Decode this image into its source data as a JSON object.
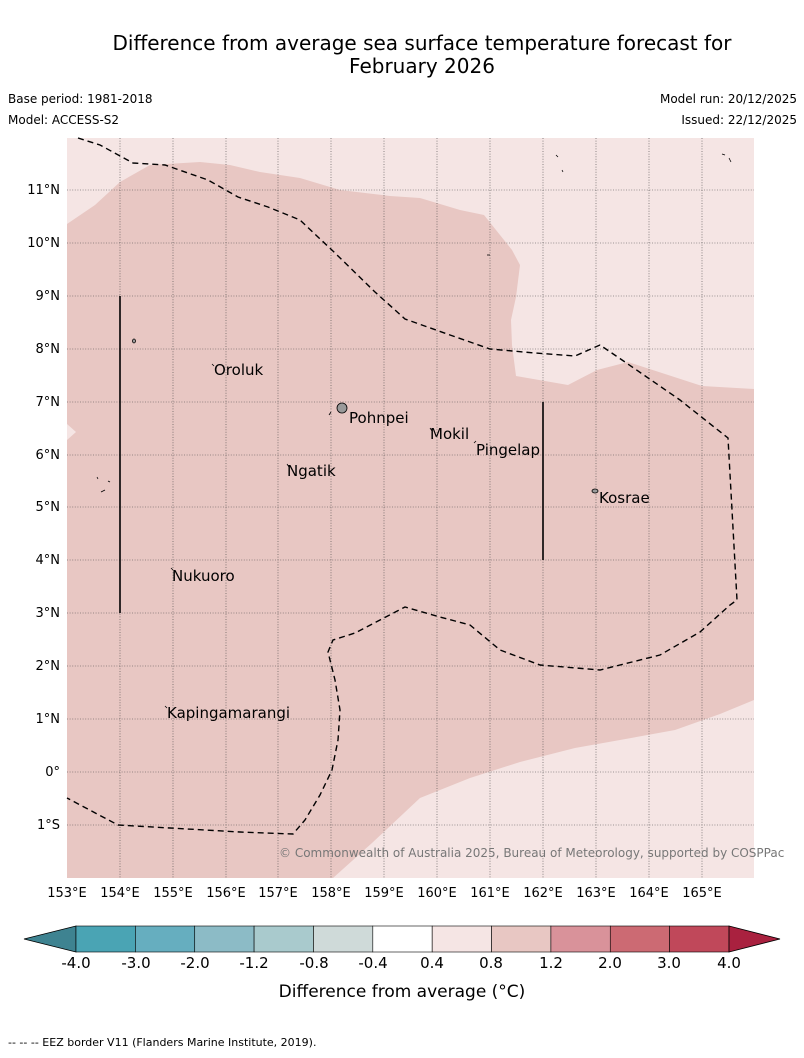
{
  "title_line1": "Difference from average sea surface temperature forecast for",
  "title_line2": "February 2026",
  "header": {
    "base_period": "Base period: 1981-2018",
    "model": "Model: ACCESS-S2",
    "model_run": "Model run: 20/12/2025",
    "issued": "Issued: 22/12/2025"
  },
  "map": {
    "lat_labels": [
      "11°N",
      "10°N",
      "9°N",
      "8°N",
      "7°N",
      "6°N",
      "5°N",
      "4°N",
      "3°N",
      "2°N",
      "1°N",
      "0°",
      "1°S"
    ],
    "lon_labels": [
      "153°E",
      "154°E",
      "155°E",
      "156°E",
      "157°E",
      "158°E",
      "159°E",
      "160°E",
      "161°E",
      "162°E",
      "163°E",
      "164°E",
      "165°E"
    ],
    "places": [
      {
        "name": "Oroluk"
      },
      {
        "name": "Pohnpei"
      },
      {
        "name": "Mokil"
      },
      {
        "name": "Pingelap"
      },
      {
        "name": "Ngatik"
      },
      {
        "name": "Kosrae"
      },
      {
        "name": "Nukuoro"
      },
      {
        "name": "Kapingamarangi"
      }
    ],
    "copyright": "© Commonwealth of Australia 2025, Bureau of Meteorology, supported by COSPPac",
    "colors": {
      "band_0p4_0p8": "#f5e5e4",
      "band_0p8_1p2": "#e8c7c3",
      "land": "#9a9a9a"
    }
  },
  "colorbar": {
    "ticks": [
      "-4.0",
      "-3.0",
      "-2.0",
      "-1.2",
      "-0.8",
      "-0.4",
      "0.4",
      "0.8",
      "1.2",
      "2.0",
      "3.0",
      "4.0"
    ],
    "label": "Difference from average (°C)",
    "colors": [
      "#3e8391",
      "#4aa4b4",
      "#66aebf",
      "#8cbbc6",
      "#a9cacd",
      "#cfdad9",
      "#ffffff",
      "#f5e5e4",
      "#e8c7c3",
      "#d9929a",
      "#cc6a73",
      "#c0485a",
      "#a9213f"
    ]
  },
  "footer": "-- -- -- EEZ border V11 (Flanders Marine Institute, 2019)."
}
